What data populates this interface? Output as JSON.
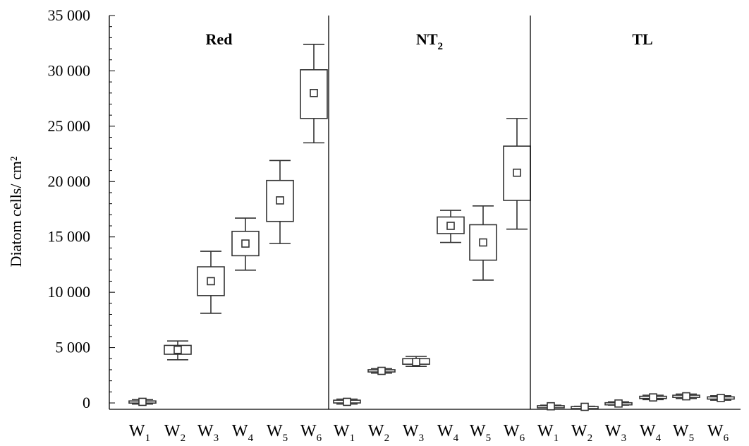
{
  "chart_data": {
    "type": "boxplot",
    "ylabel": "Diatom cells/ cm²",
    "ylim": [
      0,
      35000
    ],
    "yticks": [
      0,
      5000,
      10000,
      15000,
      20000,
      25000,
      30000,
      35000
    ],
    "ytick_labels": [
      "0",
      "5 000",
      "10 000",
      "15 000",
      "20 000",
      "25 000",
      "30 000",
      "35 000"
    ],
    "categories": [
      {
        "base": "W",
        "sub": "1"
      },
      {
        "base": "W",
        "sub": "2"
      },
      {
        "base": "W",
        "sub": "3"
      },
      {
        "base": "W",
        "sub": "4"
      },
      {
        "base": "W",
        "sub": "5"
      },
      {
        "base": "W",
        "sub": "6"
      }
    ],
    "panels": [
      {
        "title": "Red",
        "title_sub": "",
        "boxes": [
          {
            "min": -100,
            "q1": 20,
            "median": 100,
            "q3": 180,
            "max": 300
          },
          {
            "min": 3900,
            "q1": 4400,
            "median": 4800,
            "q3": 5200,
            "max": 5600
          },
          {
            "min": 8100,
            "q1": 9700,
            "median": 11000,
            "q3": 12300,
            "max": 13700
          },
          {
            "min": 12000,
            "q1": 13300,
            "median": 14400,
            "q3": 15500,
            "max": 16700
          },
          {
            "min": 14400,
            "q1": 16400,
            "median": 18300,
            "q3": 20100,
            "max": 21900
          },
          {
            "min": 23500,
            "q1": 25700,
            "median": 28000,
            "q3": 30100,
            "max": 32400
          }
        ]
      },
      {
        "title": "NT",
        "title_sub": "2",
        "boxes": [
          {
            "min": -100,
            "q1": 0,
            "median": 100,
            "q3": 250,
            "max": 350
          },
          {
            "min": 2700,
            "q1": 2800,
            "median": 2900,
            "q3": 3000,
            "max": 3100
          },
          {
            "min": 3300,
            "q1": 3500,
            "median": 3700,
            "q3": 4000,
            "max": 4200
          },
          {
            "min": 14500,
            "q1": 15300,
            "median": 16000,
            "q3": 16800,
            "max": 17400
          },
          {
            "min": 11100,
            "q1": 12900,
            "median": 14500,
            "q3": 16100,
            "max": 17800
          },
          {
            "min": 15700,
            "q1": 18300,
            "median": 20800,
            "q3": 23200,
            "max": 25700
          }
        ]
      },
      {
        "title": "TL",
        "title_sub": "",
        "boxes": [
          {
            "min": -400,
            "q1": -350,
            "median": -300,
            "q3": -250,
            "max": -200
          },
          {
            "min": -400,
            "q1": -380,
            "median": -350,
            "q3": -320,
            "max": -300
          },
          {
            "min": -200,
            "q1": -100,
            "median": -50,
            "q3": 20,
            "max": 100
          },
          {
            "min": 300,
            "q1": 400,
            "median": 500,
            "q3": 600,
            "max": 700
          },
          {
            "min": 400,
            "q1": 500,
            "median": 600,
            "q3": 700,
            "max": 800
          },
          {
            "min": 250,
            "q1": 350,
            "median": 450,
            "q3": 550,
            "max": 650
          }
        ]
      }
    ]
  }
}
